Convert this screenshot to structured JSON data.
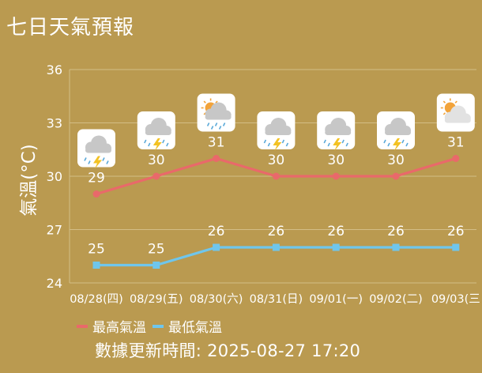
{
  "title": "七日天氣預報",
  "colors": {
    "background": "#BA9A50",
    "max_series": "#E9696A",
    "min_series": "#6FC6EC",
    "grid": "#D3BD86",
    "text": "#FFFFFF"
  },
  "legend": {
    "max_label": "最高氣溫",
    "min_label": "最低氣溫"
  },
  "updated_text": "數據更新時間: 2025-08-27 17:20",
  "chart_data": {
    "type": "line",
    "ylabel": "氣溫(°C)",
    "ylim": [
      24,
      36
    ],
    "yticks": [
      24,
      27,
      30,
      33,
      36
    ],
    "categories": [
      "08/28(四)",
      "08/29(五)",
      "08/30(六)",
      "08/31(日)",
      "09/01(一)",
      "09/02(二)",
      "09/03(三"
    ],
    "weather_icons": [
      "thunder-rain-icon",
      "thunder-rain-icon",
      "sun-cloud-rain-icon",
      "thunder-rain-icon",
      "thunder-rain-icon",
      "thunder-rain-icon",
      "partly-cloudy-icon"
    ],
    "series": [
      {
        "name": "最高氣溫",
        "values": [
          29,
          30,
          31,
          30,
          30,
          30,
          31
        ]
      },
      {
        "name": "最低氣溫",
        "values": [
          25,
          25,
          26,
          26,
          26,
          26,
          26
        ]
      }
    ],
    "grid": true,
    "legend_position": "bottom"
  }
}
